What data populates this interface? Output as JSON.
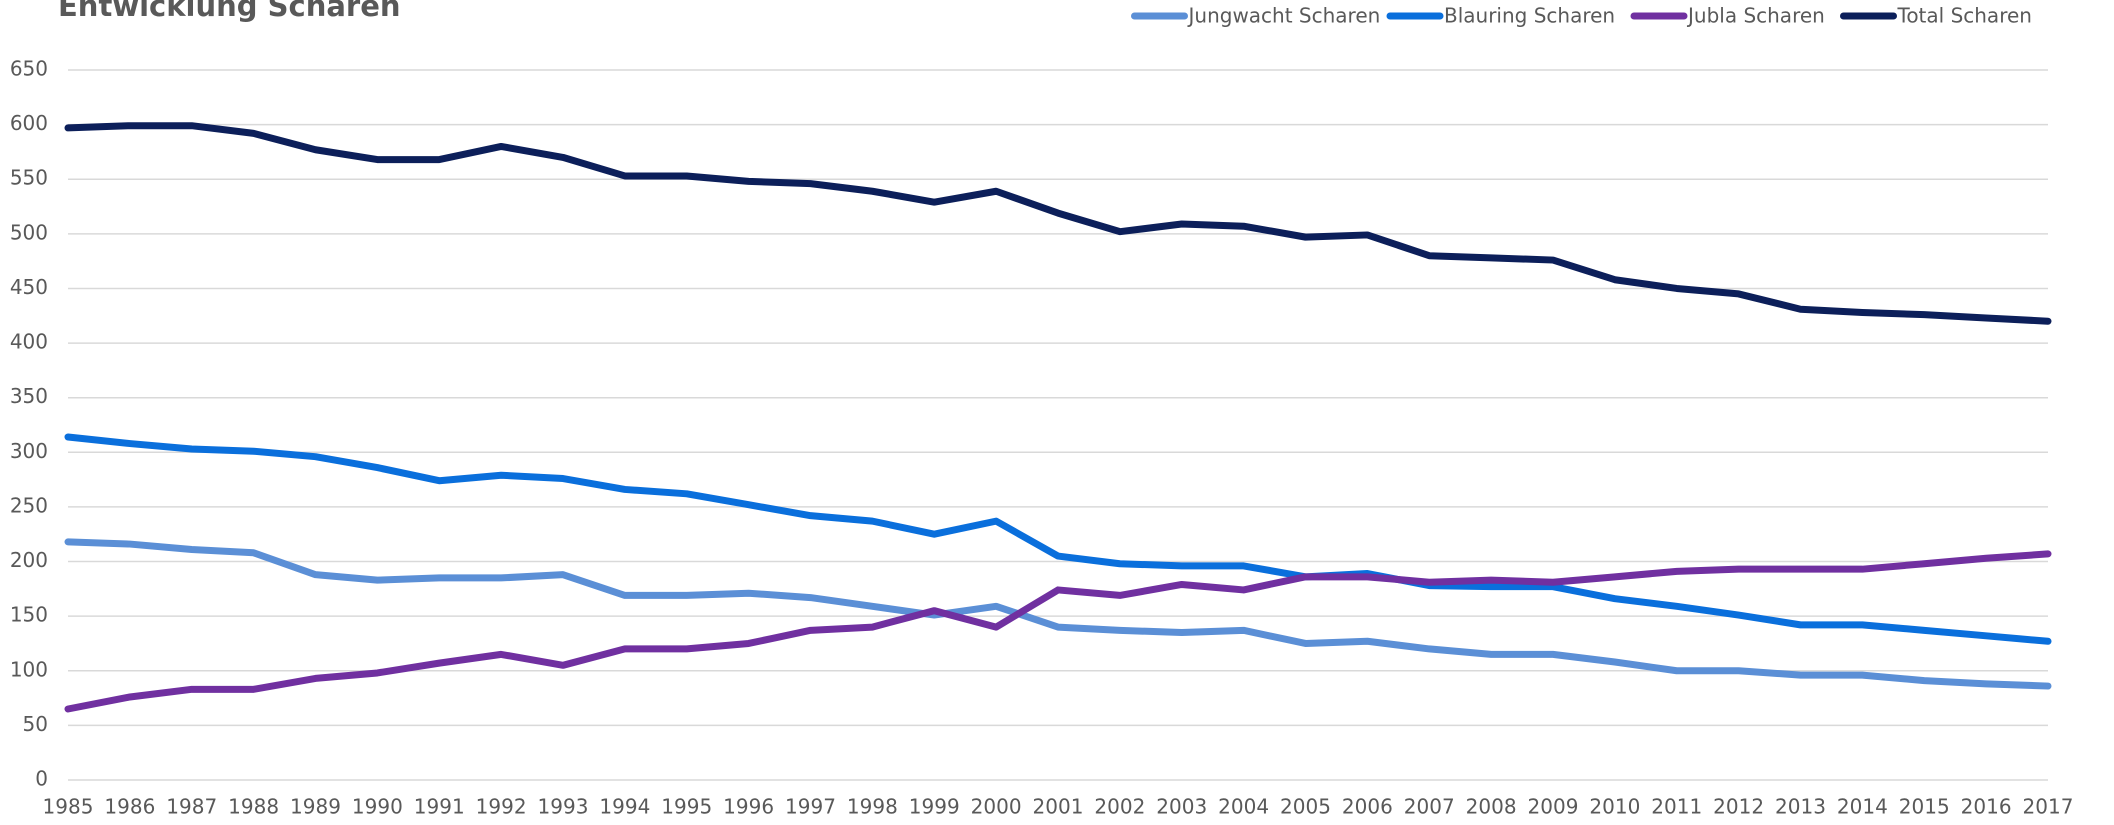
{
  "chart_data": {
    "type": "line",
    "title": "Entwicklung Scharen",
    "categories": [
      "1985",
      "1986",
      "1987",
      "1988",
      "1989",
      "1990",
      "1991",
      "1992",
      "1993",
      "1994",
      "1995",
      "1996",
      "1997",
      "1998",
      "1999",
      "2000",
      "2001",
      "2002",
      "2003",
      "2004",
      "2005",
      "2006",
      "2007",
      "2008",
      "2009",
      "2010",
      "2011",
      "2012",
      "2013",
      "2014",
      "2015",
      "2016",
      "2017"
    ],
    "series": [
      {
        "name": "Jungwacht Scharen",
        "color": "#5b8fd6",
        "values": [
          218,
          216,
          211,
          208,
          188,
          183,
          185,
          185,
          188,
          169,
          169,
          171,
          167,
          159,
          151,
          159,
          140,
          137,
          135,
          137,
          125,
          127,
          120,
          115,
          115,
          108,
          100,
          100,
          96,
          96,
          91,
          88,
          86
        ]
      },
      {
        "name": "Blauring Scharen",
        "color": "#0a6fdc",
        "values": [
          314,
          308,
          303,
          301,
          296,
          286,
          274,
          279,
          276,
          266,
          262,
          252,
          242,
          237,
          225,
          237,
          205,
          198,
          196,
          196,
          186,
          189,
          178,
          177,
          177,
          166,
          159,
          151,
          142,
          142,
          137,
          132,
          127
        ]
      },
      {
        "name": "Jubla Scharen",
        "color": "#7030a0",
        "values": [
          65,
          76,
          83,
          83,
          93,
          98,
          107,
          115,
          105,
          120,
          120,
          125,
          137,
          140,
          155,
          140,
          174,
          169,
          179,
          174,
          186,
          186,
          181,
          183,
          181,
          186,
          191,
          193,
          193,
          193,
          198,
          203,
          207
        ]
      },
      {
        "name": "Total Scharen",
        "color": "#0c1f5a",
        "values": [
          597,
          599,
          599,
          592,
          577,
          568,
          568,
          580,
          570,
          553,
          553,
          548,
          546,
          539,
          529,
          539,
          519,
          502,
          509,
          507,
          497,
          499,
          480,
          478,
          476,
          458,
          450,
          445,
          431,
          428,
          426,
          423,
          420
        ]
      }
    ],
    "ylim": [
      0,
      650
    ],
    "yticks": [
      0,
      50,
      100,
      150,
      200,
      250,
      300,
      350,
      400,
      450,
      500,
      550,
      600,
      650
    ],
    "grid": true,
    "legend": "top-right"
  }
}
